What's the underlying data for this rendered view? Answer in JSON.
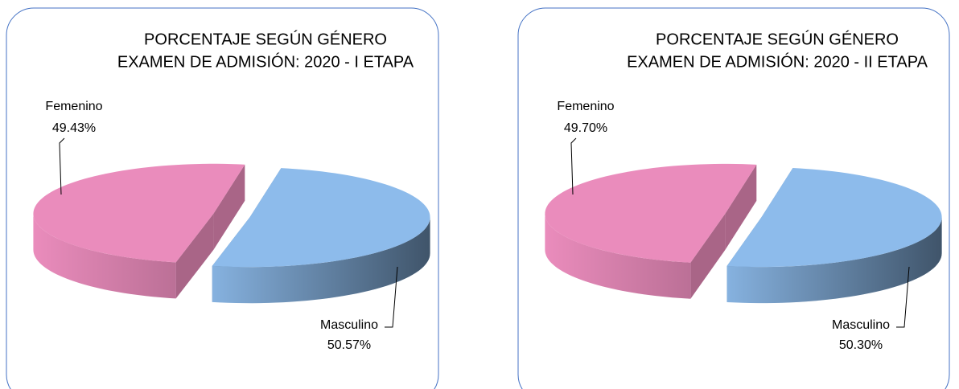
{
  "chart_data": [
    {
      "type": "pie",
      "title": "PORCENTAJE SEGÚN GÉNERO",
      "subtitle": "EXAMEN DE ADMISIÓN: 2020 - I ETAPA",
      "categories": [
        "Femenino",
        "Masculino"
      ],
      "values": [
        49.43,
        50.57
      ],
      "value_labels": [
        "49.43%",
        "50.57%"
      ],
      "colors": [
        "#ea8cbc",
        "#8dbbeb"
      ]
    },
    {
      "type": "pie",
      "title": "PORCENTAJE SEGÚN GÉNERO",
      "subtitle": "EXAMEN DE ADMISIÓN: 2020 - II ETAPA",
      "categories": [
        "Femenino",
        "Masculino"
      ],
      "values": [
        49.7,
        50.3
      ],
      "value_labels": [
        "49.70%",
        "50.30%"
      ],
      "colors": [
        "#ea8cbc",
        "#8dbbeb"
      ]
    }
  ]
}
